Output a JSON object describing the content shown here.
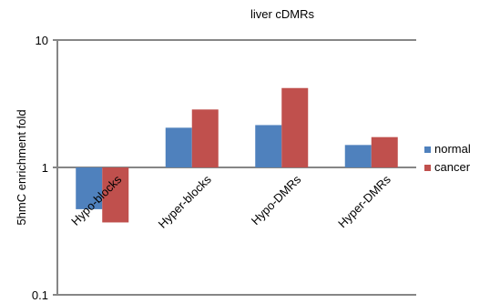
{
  "chart_data": {
    "type": "bar",
    "title": "liver cDMRs",
    "xlabel": "",
    "ylabel": "5hmC enrichment fold",
    "yscale": "log",
    "ylim": [
      0.1,
      10
    ],
    "baseline": 1,
    "yticks": [
      0.1,
      1,
      10
    ],
    "ytick_labels": [
      "0.1",
      "1",
      "10"
    ],
    "categories": [
      "Hypo-blocks",
      "Hyper-blocks",
      "Hypo-DMRs",
      "Hyper-DMRs"
    ],
    "series": [
      {
        "name": "normal",
        "color": "#4f81bd",
        "values": [
          0.47,
          2.05,
          2.15,
          1.5
        ]
      },
      {
        "name": "cancer",
        "color": "#c0504d",
        "values": [
          0.37,
          2.85,
          4.2,
          1.73
        ]
      }
    ],
    "grid": false,
    "legend_position": "right",
    "axis_color": "#868686"
  }
}
